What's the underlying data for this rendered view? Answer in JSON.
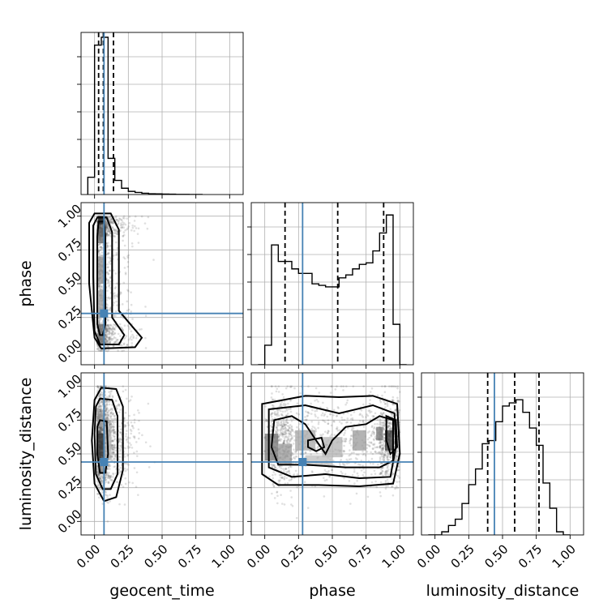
{
  "chart_data": {
    "type": "corner",
    "parameters": [
      "geocent_time",
      "phase",
      "luminosity_distance"
    ],
    "axis_labels": {
      "x": [
        "geocent_time",
        "phase",
        "luminosity_distance"
      ],
      "y": [
        "",
        "phase",
        "luminosity_distance"
      ]
    },
    "range": [
      0,
      1
    ],
    "ticks": [
      0.0,
      0.25,
      0.5,
      0.75,
      1.0
    ],
    "tick_labels": [
      "0.00",
      "0.25",
      "0.50",
      "0.75",
      "1.00"
    ],
    "truths": {
      "geocent_time": 0.07,
      "phase": 0.28,
      "luminosity_distance": 0.44
    },
    "quantiles": {
      "geocent_time": [
        0.03,
        0.065,
        0.14
      ],
      "phase": [
        0.15,
        0.54,
        0.88
      ],
      "luminosity_distance": [
        0.39,
        0.59,
        0.77
      ]
    },
    "histograms": {
      "geocent_time": {
        "bin_edges": [
          -0.05,
          0.0,
          0.05,
          0.1,
          0.15,
          0.2,
          0.25,
          0.3,
          0.35,
          0.4,
          0.45,
          0.5,
          0.55,
          0.6,
          0.65,
          0.7,
          0.75,
          0.8
        ],
        "counts": [
          0.11,
          0.95,
          1.0,
          0.23,
          0.09,
          0.04,
          0.02,
          0.013,
          0.008,
          0.005,
          0.004,
          0.003,
          0.002,
          0.001,
          0.001,
          0.0,
          0.0
        ],
        "ylim": [
          0,
          1.0
        ]
      },
      "phase": {
        "bin_edges": [
          -0.05,
          0.0,
          0.05,
          0.1,
          0.15,
          0.2,
          0.25,
          0.3,
          0.35,
          0.4,
          0.45,
          0.5,
          0.55,
          0.6,
          0.65,
          0.7,
          0.75,
          0.8,
          0.85,
          0.9,
          0.95,
          1.0,
          1.05
        ],
        "counts": [
          0.0,
          0.13,
          0.8,
          0.69,
          0.69,
          0.64,
          0.61,
          0.61,
          0.54,
          0.53,
          0.52,
          0.52,
          0.58,
          0.6,
          0.64,
          0.67,
          0.68,
          0.76,
          0.88,
          1.0,
          0.27,
          0.0
        ],
        "ylim": [
          0,
          1.05
        ]
      },
      "luminosity_distance": {
        "bin_edges": [
          -0.05,
          0.0,
          0.05,
          0.1,
          0.15,
          0.2,
          0.25,
          0.3,
          0.35,
          0.4,
          0.45,
          0.5,
          0.55,
          0.6,
          0.65,
          0.7,
          0.75,
          0.8,
          0.85,
          0.9,
          0.95,
          1.0
        ],
        "counts": [
          0.0,
          0.0,
          0.02,
          0.06,
          0.1,
          0.2,
          0.32,
          0.42,
          0.58,
          0.6,
          0.72,
          0.82,
          0.84,
          0.86,
          0.78,
          0.68,
          0.57,
          0.33,
          0.17,
          0.02,
          0.0
        ],
        "ylim": [
          0,
          1.0
        ]
      }
    },
    "density_cores": {
      "phase|geocent_time": [
        {
          "x": 0.05,
          "y": 0.97,
          "w": 0.05,
          "h": 0.06,
          "shade": 0.9
        },
        {
          "x": 0.05,
          "y": 0.85,
          "w": 0.05,
          "h": 0.1,
          "shade": 0.6
        },
        {
          "x": 0.05,
          "y": 0.6,
          "w": 0.05,
          "h": 0.2,
          "shade": 0.45
        },
        {
          "x": 0.05,
          "y": 0.35,
          "w": 0.05,
          "h": 0.2,
          "shade": 0.4
        },
        {
          "x": 0.05,
          "y": 0.12,
          "w": 0.05,
          "h": 0.16,
          "shade": 0.55
        }
      ],
      "luminosity_distance|geocent_time": [
        {
          "x": 0.05,
          "y": 0.55,
          "w": 0.05,
          "h": 0.2,
          "shade": 0.8
        },
        {
          "x": 0.05,
          "y": 0.75,
          "w": 0.05,
          "h": 0.1,
          "shade": 0.4
        },
        {
          "x": 0.05,
          "y": 0.4,
          "w": 0.05,
          "h": 0.1,
          "shade": 0.45
        },
        {
          "x": 0.1,
          "y": 0.58,
          "w": 0.05,
          "h": 0.25,
          "shade": 0.3
        }
      ],
      "luminosity_distance|phase": [
        {
          "x": 0.05,
          "y": 0.55,
          "w": 0.1,
          "h": 0.2,
          "shade": 0.55
        },
        {
          "x": 0.15,
          "y": 0.5,
          "w": 0.1,
          "h": 0.15,
          "shade": 0.4
        },
        {
          "x": 0.3,
          "y": 0.6,
          "w": 0.15,
          "h": 0.15,
          "shade": 0.35
        },
        {
          "x": 0.5,
          "y": 0.55,
          "w": 0.15,
          "h": 0.15,
          "shade": 0.3
        },
        {
          "x": 0.7,
          "y": 0.6,
          "w": 0.1,
          "h": 0.15,
          "shade": 0.4
        },
        {
          "x": 0.85,
          "y": 0.65,
          "w": 0.05,
          "h": 0.1,
          "shade": 0.55
        },
        {
          "x": 0.92,
          "y": 0.6,
          "w": 0.06,
          "h": 0.15,
          "shade": 0.8
        },
        {
          "x": 0.4,
          "y": 0.45,
          "w": 0.2,
          "h": 0.08,
          "shade": 0.25
        }
      ]
    },
    "contours": {
      "phase|geocent_time": [
        [
          [
            0.0,
            1.02
          ],
          [
            0.12,
            1.02
          ],
          [
            0.18,
            0.9
          ],
          [
            0.18,
            0.3
          ],
          [
            0.35,
            0.1
          ],
          [
            0.3,
            0.03
          ],
          [
            0.05,
            0.02
          ],
          [
            0.0,
            0.1
          ],
          [
            -0.04,
            0.5
          ],
          [
            -0.04,
            0.95
          ]
        ],
        [
          [
            0.02,
            0.99
          ],
          [
            0.09,
            0.99
          ],
          [
            0.13,
            0.88
          ],
          [
            0.13,
            0.25
          ],
          [
            0.22,
            0.12
          ],
          [
            0.18,
            0.05
          ],
          [
            0.04,
            0.05
          ],
          [
            0.0,
            0.15
          ],
          [
            -0.01,
            0.55
          ],
          [
            -0.01,
            0.93
          ]
        ],
        [
          [
            0.03,
            0.96
          ],
          [
            0.07,
            0.96
          ],
          [
            0.08,
            0.85
          ],
          [
            0.08,
            0.2
          ],
          [
            0.06,
            0.12
          ],
          [
            0.04,
            0.12
          ],
          [
            0.02,
            0.2
          ],
          [
            0.02,
            0.85
          ]
        ]
      ],
      "luminosity_distance|geocent_time": [
        [
          [
            0.05,
            0.99
          ],
          [
            0.16,
            0.98
          ],
          [
            0.21,
            0.85
          ],
          [
            0.21,
            0.38
          ],
          [
            0.16,
            0.18
          ],
          [
            0.07,
            0.15
          ],
          [
            0.0,
            0.28
          ],
          [
            -0.02,
            0.6
          ],
          [
            0.0,
            0.9
          ]
        ],
        [
          [
            0.04,
            0.91
          ],
          [
            0.13,
            0.9
          ],
          [
            0.17,
            0.78
          ],
          [
            0.17,
            0.35
          ],
          [
            0.12,
            0.24
          ],
          [
            0.06,
            0.24
          ],
          [
            0.01,
            0.35
          ],
          [
            0.0,
            0.65
          ],
          [
            0.01,
            0.85
          ]
        ],
        [
          [
            0.04,
            0.75
          ],
          [
            0.09,
            0.74
          ],
          [
            0.1,
            0.5
          ],
          [
            0.08,
            0.36
          ],
          [
            0.04,
            0.36
          ],
          [
            0.02,
            0.5
          ],
          [
            0.02,
            0.7
          ]
        ]
      ],
      "luminosity_distance|phase": [
        [
          [
            -0.02,
            0.87
          ],
          [
            0.3,
            0.93
          ],
          [
            0.55,
            0.92
          ],
          [
            0.8,
            0.93
          ],
          [
            0.98,
            0.87
          ],
          [
            1.0,
            0.5
          ],
          [
            0.95,
            0.28
          ],
          [
            0.7,
            0.26
          ],
          [
            0.4,
            0.27
          ],
          [
            0.1,
            0.27
          ],
          [
            -0.02,
            0.35
          ]
        ],
        [
          [
            0.03,
            0.83
          ],
          [
            0.3,
            0.86
          ],
          [
            0.55,
            0.8
          ],
          [
            0.8,
            0.86
          ],
          [
            0.96,
            0.8
          ],
          [
            0.97,
            0.55
          ],
          [
            0.93,
            0.33
          ],
          [
            0.7,
            0.32
          ],
          [
            0.45,
            0.35
          ],
          [
            0.2,
            0.33
          ],
          [
            0.03,
            0.4
          ]
        ],
        [
          [
            0.07,
            0.75
          ],
          [
            0.2,
            0.78
          ],
          [
            0.3,
            0.72
          ],
          [
            0.38,
            0.6
          ],
          [
            0.45,
            0.5
          ],
          [
            0.5,
            0.6
          ],
          [
            0.6,
            0.7
          ],
          [
            0.75,
            0.72
          ],
          [
            0.85,
            0.78
          ],
          [
            0.95,
            0.75
          ],
          [
            0.95,
            0.45
          ],
          [
            0.85,
            0.4
          ],
          [
            0.6,
            0.4
          ],
          [
            0.3,
            0.42
          ],
          [
            0.1,
            0.42
          ],
          [
            0.05,
            0.55
          ]
        ],
        [
          [
            0.9,
            0.78
          ],
          [
            0.97,
            0.75
          ],
          [
            0.98,
            0.55
          ],
          [
            0.93,
            0.5
          ],
          [
            0.9,
            0.6
          ]
        ],
        [
          [
            0.32,
            0.6
          ],
          [
            0.42,
            0.62
          ],
          [
            0.44,
            0.55
          ],
          [
            0.38,
            0.52
          ],
          [
            0.32,
            0.55
          ]
        ]
      ]
    }
  }
}
